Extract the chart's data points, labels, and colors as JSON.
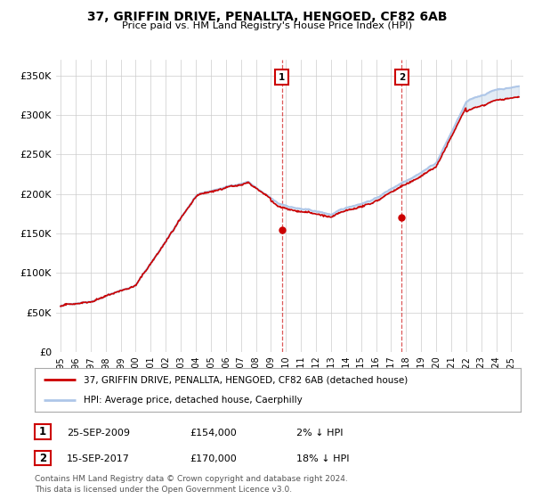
{
  "title": "37, GRIFFIN DRIVE, PENALLTA, HENGOED, CF82 6AB",
  "subtitle": "Price paid vs. HM Land Registry's House Price Index (HPI)",
  "ylim": [
    0,
    370000
  ],
  "yticks": [
    0,
    50000,
    100000,
    150000,
    200000,
    250000,
    300000,
    350000
  ],
  "ytick_labels": [
    "£0",
    "£50K",
    "£100K",
    "£150K",
    "£200K",
    "£250K",
    "£300K",
    "£350K"
  ],
  "background_color": "#ffffff",
  "grid_color": "#cccccc",
  "hpi_color": "#aec6e8",
  "price_color": "#cc0000",
  "marker1_year": 2009.73,
  "marker1_price": 154000,
  "marker1_date": "25-SEP-2009",
  "marker1_amount": "£154,000",
  "marker1_pct": "2% ↓ HPI",
  "marker2_year": 2017.71,
  "marker2_price": 170000,
  "marker2_date": "15-SEP-2017",
  "marker2_amount": "£170,000",
  "marker2_pct": "18% ↓ HPI",
  "legend_label1": "37, GRIFFIN DRIVE, PENALLTA, HENGOED, CF82 6AB (detached house)",
  "legend_label2": "HPI: Average price, detached house, Caerphilly",
  "footnote": "Contains HM Land Registry data © Crown copyright and database right 2024.\nThis data is licensed under the Open Government Licence v3.0.",
  "xstart": 1994.7,
  "xend": 2025.8
}
